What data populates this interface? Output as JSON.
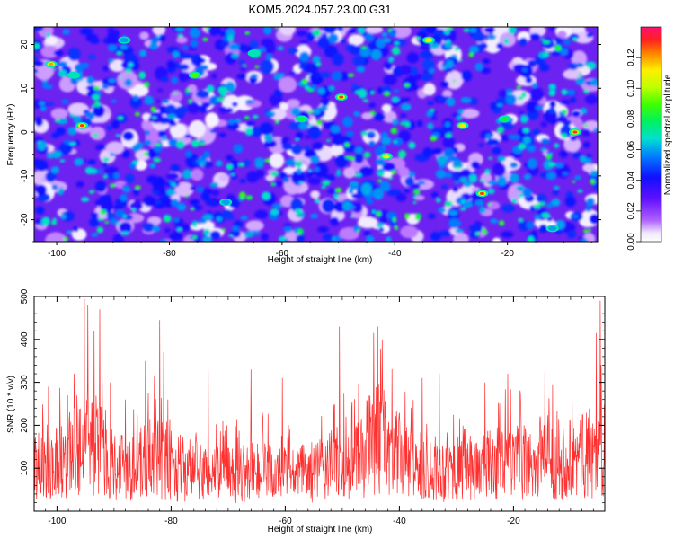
{
  "chart_data": [
    {
      "type": "heatmap",
      "title": "KOM5.2024.057.23.00.G31",
      "xlabel": "Height of straight line (km)",
      "ylabel": "Frequency (Hz)",
      "xlim": [
        -104,
        -4
      ],
      "ylim": [
        -25,
        24
      ],
      "x_ticks": [
        -100,
        -80,
        -60,
        -40,
        -20
      ],
      "y_ticks": [
        -20,
        -10,
        0,
        10,
        20
      ],
      "colorbar": {
        "label": "Normalized spectral amplitude",
        "range": [
          0,
          0.14
        ],
        "ticks": [
          "0.00",
          "0.02",
          "0.04",
          "0.06",
          "0.08",
          "0.10",
          "0.12"
        ],
        "colormap": "rainbow"
      },
      "values_description": "",
      "hotspots": [
        {
          "x": -95.5,
          "y": 1.5,
          "value": 0.13
        },
        {
          "x": -49.5,
          "y": 8,
          "value": 0.13
        },
        {
          "x": -24.5,
          "y": -14,
          "value": 0.13
        },
        {
          "x": -8,
          "y": 0,
          "value": 0.13
        },
        {
          "x": -101,
          "y": 15.5,
          "value": 0.12
        },
        {
          "x": -34,
          "y": 21,
          "value": 0.11
        },
        {
          "x": -28,
          "y": 1.5,
          "value": 0.11
        },
        {
          "x": -41.5,
          "y": -5.5,
          "value": 0.11
        },
        {
          "x": -75.5,
          "y": 13,
          "value": 0.09
        },
        {
          "x": -56.5,
          "y": 3,
          "value": 0.08
        },
        {
          "x": -20.5,
          "y": 3,
          "value": 0.08
        },
        {
          "x": -97,
          "y": 13,
          "value": 0.07
        },
        {
          "x": -65,
          "y": 18,
          "value": 0.07
        },
        {
          "x": -88,
          "y": 21,
          "value": 0.06
        },
        {
          "x": -70,
          "y": -16,
          "value": 0.06
        },
        {
          "x": -12,
          "y": -22,
          "value": 0.06
        }
      ]
    },
    {
      "type": "line",
      "title": "",
      "xlabel": "Height of straight line (km)",
      "ylabel": "SNR (10 * v/v)",
      "xlim": [
        -104,
        -4
      ],
      "ylim": [
        0,
        500
      ],
      "x_ticks": [
        -100,
        -80,
        -60,
        -40,
        -20
      ],
      "y_ticks": [
        100,
        200,
        300,
        400,
        500
      ],
      "series_color": "#ff3030",
      "peaks": [
        {
          "x": -95.2,
          "y": 495
        },
        {
          "x": -94.6,
          "y": 480
        },
        {
          "x": -92.5,
          "y": 470
        },
        {
          "x": -93.5,
          "y": 420
        },
        {
          "x": -82,
          "y": 445
        },
        {
          "x": -81.3,
          "y": 370
        },
        {
          "x": -84.5,
          "y": 350
        },
        {
          "x": -73.5,
          "y": 330
        },
        {
          "x": -66,
          "y": 330
        },
        {
          "x": -50.5,
          "y": 430
        },
        {
          "x": -43.8,
          "y": 430
        },
        {
          "x": -44.5,
          "y": 415
        },
        {
          "x": -43,
          "y": 400
        },
        {
          "x": -33,
          "y": 320
        },
        {
          "x": -21,
          "y": 320
        },
        {
          "x": -14.5,
          "y": 325
        },
        {
          "x": -5.5,
          "y": 415
        },
        {
          "x": -4.8,
          "y": 490
        },
        {
          "x": -101.5,
          "y": 290
        },
        {
          "x": -97,
          "y": 320
        },
        {
          "x": -88,
          "y": 260
        },
        {
          "x": -60.5,
          "y": 310
        },
        {
          "x": -36,
          "y": 310
        },
        {
          "x": -25,
          "y": 300
        }
      ]
    }
  ]
}
